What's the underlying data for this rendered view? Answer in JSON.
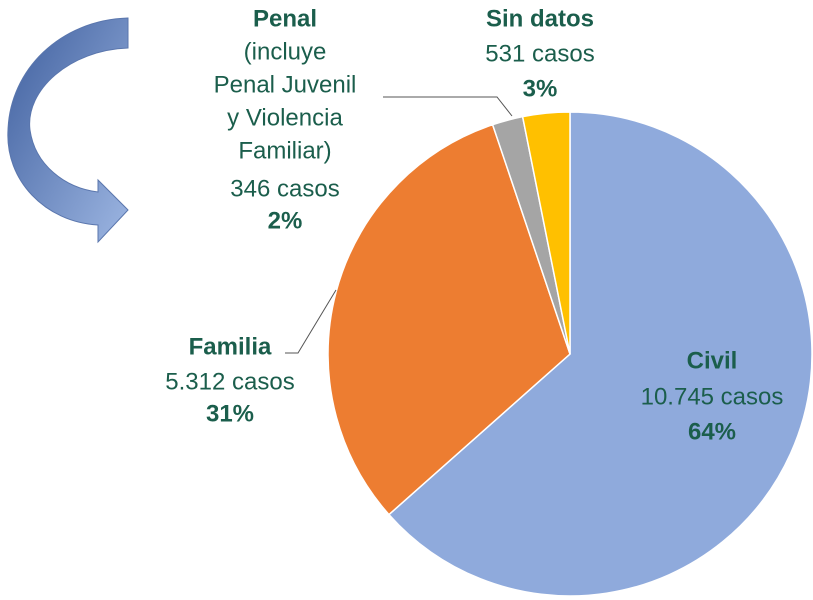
{
  "chart_data": {
    "type": "pie",
    "categories": [
      "Civil",
      "Familia",
      "Penal",
      "Sin datos"
    ],
    "values": [
      10745,
      5312,
      346,
      531
    ],
    "value_labels": [
      "10.745 casos",
      "5.312 casos",
      "346 casos",
      "531 casos"
    ],
    "percent_labels": [
      "64%",
      "31%",
      "2%",
      "3%"
    ],
    "penal_note_lines": [
      "(incluye",
      "Penal Juvenil",
      "y Violencia",
      "Familiar)"
    ],
    "colors": [
      "#8faadc",
      "#ed7d31",
      "#a5a5a5",
      "#ffc000"
    ]
  }
}
